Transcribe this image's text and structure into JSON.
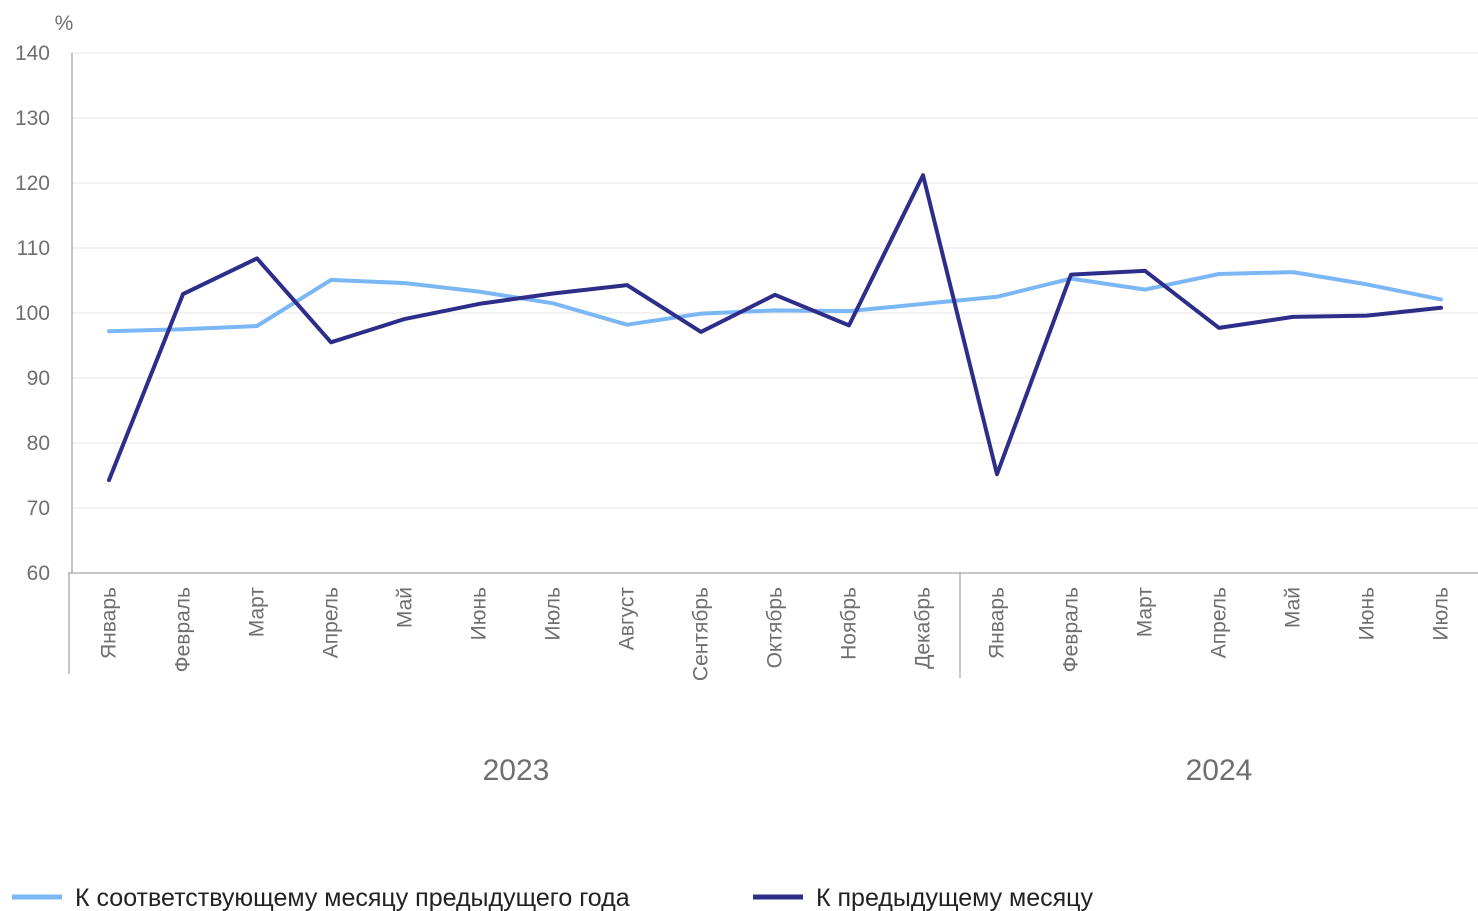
{
  "chart_data": {
    "type": "line",
    "unit_label": "%",
    "ylim": [
      60,
      140
    ],
    "yticks": [
      60,
      70,
      80,
      90,
      100,
      110,
      120,
      130,
      140
    ],
    "grid": true,
    "legend_position": "bottom-left",
    "groups": [
      {
        "label": "2023",
        "count": 12
      },
      {
        "label": "2024",
        "count": 7
      }
    ],
    "categories": [
      "Январь",
      "Февраль",
      "Март",
      "Апрель",
      "Май",
      "Июнь",
      "Июль",
      "Август",
      "Сентябрь",
      "Октябрь",
      "Ноябрь",
      "Декабрь",
      "Январь",
      "Февраль",
      "Март",
      "Апрель",
      "Май",
      "Июнь",
      "Июль"
    ],
    "series": [
      {
        "name": "К соответствующему месяцу предыдущего года",
        "color": "#7cb7f5",
        "values": [
          97.2,
          97.5,
          98.0,
          105.1,
          104.6,
          103.3,
          101.5,
          98.2,
          99.9,
          100.4,
          100.3,
          101.4,
          102.5,
          105.3,
          103.6,
          106.0,
          106.3,
          104.4,
          102.1
        ]
      },
      {
        "name": "К предыдущему месяцу",
        "color": "#2e2e8a",
        "values": [
          74.3,
          102.9,
          108.4,
          95.5,
          99.1,
          101.4,
          103.0,
          104.3,
          97.1,
          102.8,
          98.1,
          121.2,
          75.2,
          105.9,
          106.5,
          97.7,
          99.4,
          99.6,
          100.8
        ]
      }
    ]
  }
}
